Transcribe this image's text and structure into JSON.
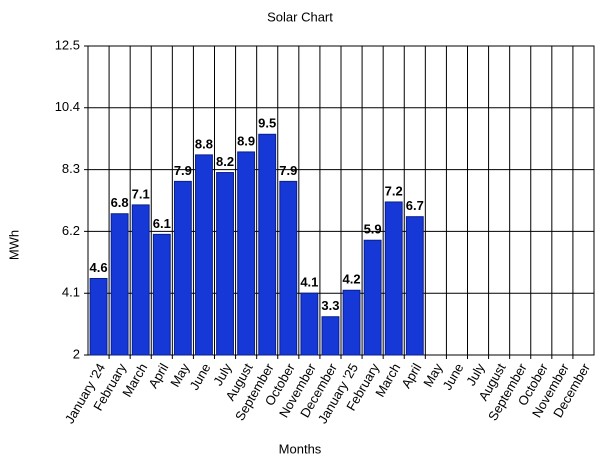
{
  "chart_data": {
    "type": "bar",
    "title": "Solar Chart",
    "x_label": "Months",
    "y_label": "MWh",
    "categories": [
      "January '24",
      "February",
      "March",
      "April",
      "May",
      "June",
      "July",
      "August",
      "September",
      "October",
      "November",
      "December",
      "January '25",
      "February",
      "March",
      "April",
      "May",
      "June",
      "July",
      "August",
      "September",
      "October",
      "November",
      "December"
    ],
    "values": [
      4.6,
      6.8,
      7.1,
      6.1,
      7.9,
      8.8,
      8.2,
      8.9,
      9.5,
      7.9,
      4.1,
      3.3,
      4.2,
      5.9,
      7.2,
      6.7,
      null,
      null,
      null,
      null,
      null,
      null,
      null,
      null
    ],
    "color": "#1638d6",
    "ylim": [
      2,
      12.5
    ],
    "yticks": [
      2,
      4.1,
      6.2,
      8.3,
      10.4,
      12.5
    ],
    "grid": true
  }
}
